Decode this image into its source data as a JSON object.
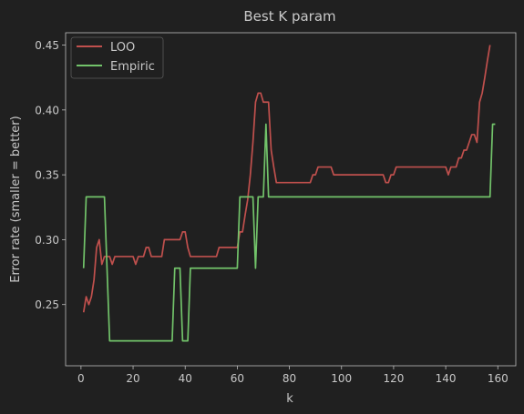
{
  "colors": {
    "background": "#202020",
    "axes": "#bdbdbd",
    "text": "#c8c8c8",
    "loo": "#c0504d",
    "empiric": "#72c36a"
  },
  "chart_data": {
    "type": "line",
    "title": "Best K param",
    "xlabel": "k",
    "ylabel": "Error rate (smaller = better)",
    "xlim": [
      -5.9,
      166.9
    ],
    "ylim": [
      0.2028,
      0.4595
    ],
    "xticks": [
      0,
      20,
      40,
      60,
      80,
      100,
      120,
      140,
      160
    ],
    "yticks": [
      0.25,
      0.3,
      0.35,
      0.4,
      0.45
    ],
    "ytick_labels": [
      "0.25",
      "0.30",
      "0.35",
      "0.40",
      "0.45"
    ],
    "grid": false,
    "legend": {
      "location": "upper-left",
      "entries": [
        "LOO",
        "Empiric"
      ]
    },
    "series": [
      {
        "name": "LOO",
        "color": "#c0504d",
        "points": [
          [
            1,
            0.244
          ],
          [
            2,
            0.256
          ],
          [
            3,
            0.25
          ],
          [
            4,
            0.256
          ],
          [
            5,
            0.269
          ],
          [
            6,
            0.294
          ],
          [
            7,
            0.3
          ],
          [
            8,
            0.281
          ],
          [
            9,
            0.287
          ],
          [
            10,
            0.287
          ],
          [
            11,
            0.287
          ],
          [
            12,
            0.281
          ],
          [
            13,
            0.287
          ],
          [
            14,
            0.287
          ],
          [
            20,
            0.287
          ],
          [
            21,
            0.281
          ],
          [
            22,
            0.287
          ],
          [
            24,
            0.287
          ],
          [
            25,
            0.294
          ],
          [
            26,
            0.294
          ],
          [
            27,
            0.287
          ],
          [
            31,
            0.287
          ],
          [
            32,
            0.3
          ],
          [
            38,
            0.3
          ],
          [
            39,
            0.306
          ],
          [
            40,
            0.306
          ],
          [
            41,
            0.294
          ],
          [
            42,
            0.287
          ],
          [
            52,
            0.287
          ],
          [
            53,
            0.294
          ],
          [
            60,
            0.294
          ],
          [
            61,
            0.306
          ],
          [
            62,
            0.306
          ],
          [
            63,
            0.319
          ],
          [
            64,
            0.331
          ],
          [
            65,
            0.35
          ],
          [
            66,
            0.375
          ],
          [
            67,
            0.406
          ],
          [
            68,
            0.413
          ],
          [
            69,
            0.413
          ],
          [
            70,
            0.406
          ],
          [
            71,
            0.406
          ],
          [
            72,
            0.406
          ],
          [
            73,
            0.369
          ],
          [
            74,
            0.356
          ],
          [
            75,
            0.344
          ],
          [
            88,
            0.344
          ],
          [
            89,
            0.35
          ],
          [
            90,
            0.35
          ],
          [
            91,
            0.356
          ],
          [
            96,
            0.356
          ],
          [
            97,
            0.35
          ],
          [
            116,
            0.35
          ],
          [
            117,
            0.344
          ],
          [
            118,
            0.344
          ],
          [
            119,
            0.35
          ],
          [
            120,
            0.35
          ],
          [
            121,
            0.356
          ],
          [
            140,
            0.356
          ],
          [
            141,
            0.35
          ],
          [
            142,
            0.356
          ],
          [
            144,
            0.356
          ],
          [
            145,
            0.363
          ],
          [
            146,
            0.363
          ],
          [
            147,
            0.369
          ],
          [
            148,
            0.369
          ],
          [
            149,
            0.375
          ],
          [
            150,
            0.381
          ],
          [
            151,
            0.381
          ],
          [
            152,
            0.375
          ],
          [
            153,
            0.406
          ],
          [
            154,
            0.413
          ],
          [
            155,
            0.425
          ],
          [
            156,
            0.438
          ],
          [
            157,
            0.45
          ]
        ]
      },
      {
        "name": "Empiric",
        "color": "#72c36a",
        "points": [
          [
            1,
            0.278
          ],
          [
            2,
            0.333
          ],
          [
            9,
            0.333
          ],
          [
            11,
            0.222
          ],
          [
            35,
            0.222
          ],
          [
            36,
            0.278
          ],
          [
            38,
            0.278
          ],
          [
            39,
            0.222
          ],
          [
            41,
            0.222
          ],
          [
            42,
            0.278
          ],
          [
            60,
            0.278
          ],
          [
            61,
            0.333
          ],
          [
            66,
            0.333
          ],
          [
            67,
            0.278
          ],
          [
            68,
            0.333
          ],
          [
            70,
            0.333
          ],
          [
            71,
            0.389
          ],
          [
            72,
            0.333
          ],
          [
            157,
            0.333
          ],
          [
            158,
            0.389
          ],
          [
            159,
            0.389
          ]
        ]
      }
    ]
  }
}
